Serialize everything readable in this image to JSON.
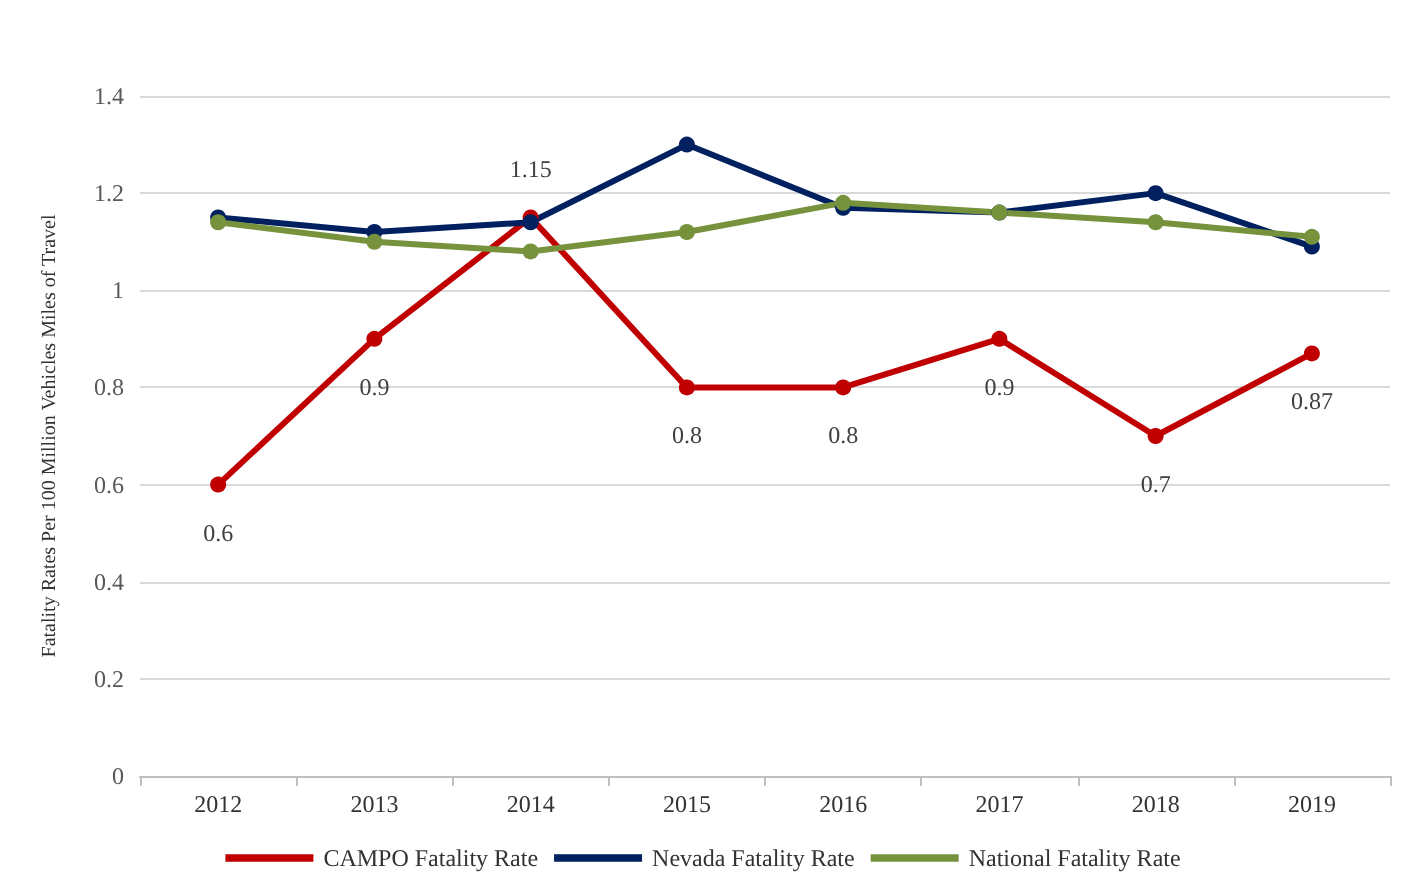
{
  "chart_data": {
    "type": "line",
    "ylabel": "Fatality Rates Per 100 Million Vehicles Miles of Travel",
    "categories": [
      "2012",
      "2013",
      "2014",
      "2015",
      "2016",
      "2017",
      "2018",
      "2019"
    ],
    "series": [
      {
        "name": "CAMPO Fatality Rate",
        "color": "#c00000",
        "values": [
          0.6,
          0.9,
          1.15,
          0.8,
          0.8,
          0.9,
          0.7,
          0.87
        ],
        "value_labels": [
          "0.6",
          "0.9",
          "1.15",
          "0.8",
          "0.8",
          "0.9",
          "0.7",
          "0.87"
        ]
      },
      {
        "name": "Nevada Fatality Rate",
        "color": "#002060",
        "values": [
          1.15,
          1.12,
          1.14,
          1.3,
          1.17,
          1.16,
          1.2,
          1.09
        ]
      },
      {
        "name": "National Fatality Rate",
        "color": "#76923c",
        "values": [
          1.14,
          1.1,
          1.08,
          1.12,
          1.18,
          1.16,
          1.14,
          1.11
        ]
      }
    ],
    "ylim": [
      0,
      1.4
    ],
    "yticks": [
      0,
      0.2,
      0.4,
      0.6,
      0.8,
      1,
      1.2,
      1.4
    ],
    "grid": "y",
    "legend": "bottom",
    "marker": "circle",
    "line_style": "solid"
  }
}
